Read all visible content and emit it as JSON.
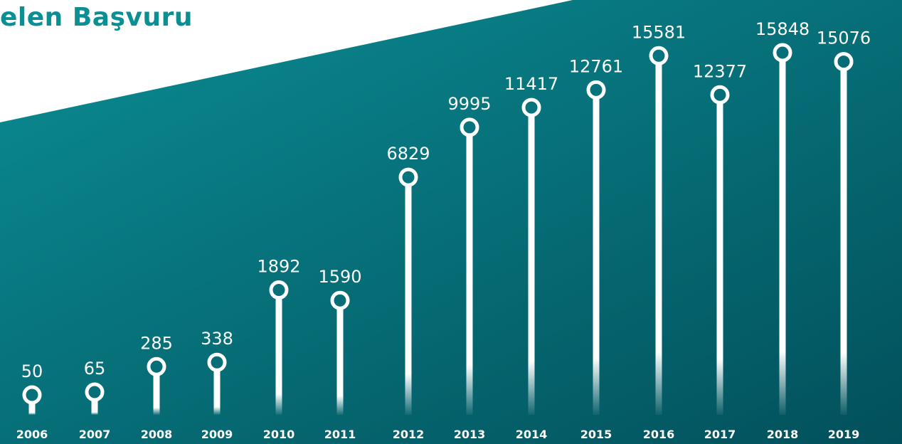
{
  "title": "elen Başvuru",
  "colors": {
    "title": "#0a8f95",
    "background_start": "#0a8a92",
    "background_end": "#03505a",
    "marks": "#ffffff"
  },
  "chart_data": {
    "type": "bar",
    "categories": [
      "2006",
      "2007",
      "2008",
      "2009",
      "2010",
      "2011",
      "2012",
      "2013",
      "2014",
      "2015",
      "2016",
      "2017",
      "2018",
      "2019"
    ],
    "values": [
      50,
      65,
      285,
      338,
      1892,
      1590,
      6829,
      9995,
      11417,
      12761,
      15581,
      12377,
      15848,
      15076
    ],
    "value_labels": [
      "50",
      "65",
      "285",
      "338",
      "1892",
      "1590",
      "6829",
      "9995",
      "11417",
      "12761",
      "15581",
      "12377",
      "15848",
      "15076"
    ],
    "title": "elen Başvuru",
    "xlabel": "",
    "ylabel": "",
    "grid": false,
    "legend": "none"
  }
}
